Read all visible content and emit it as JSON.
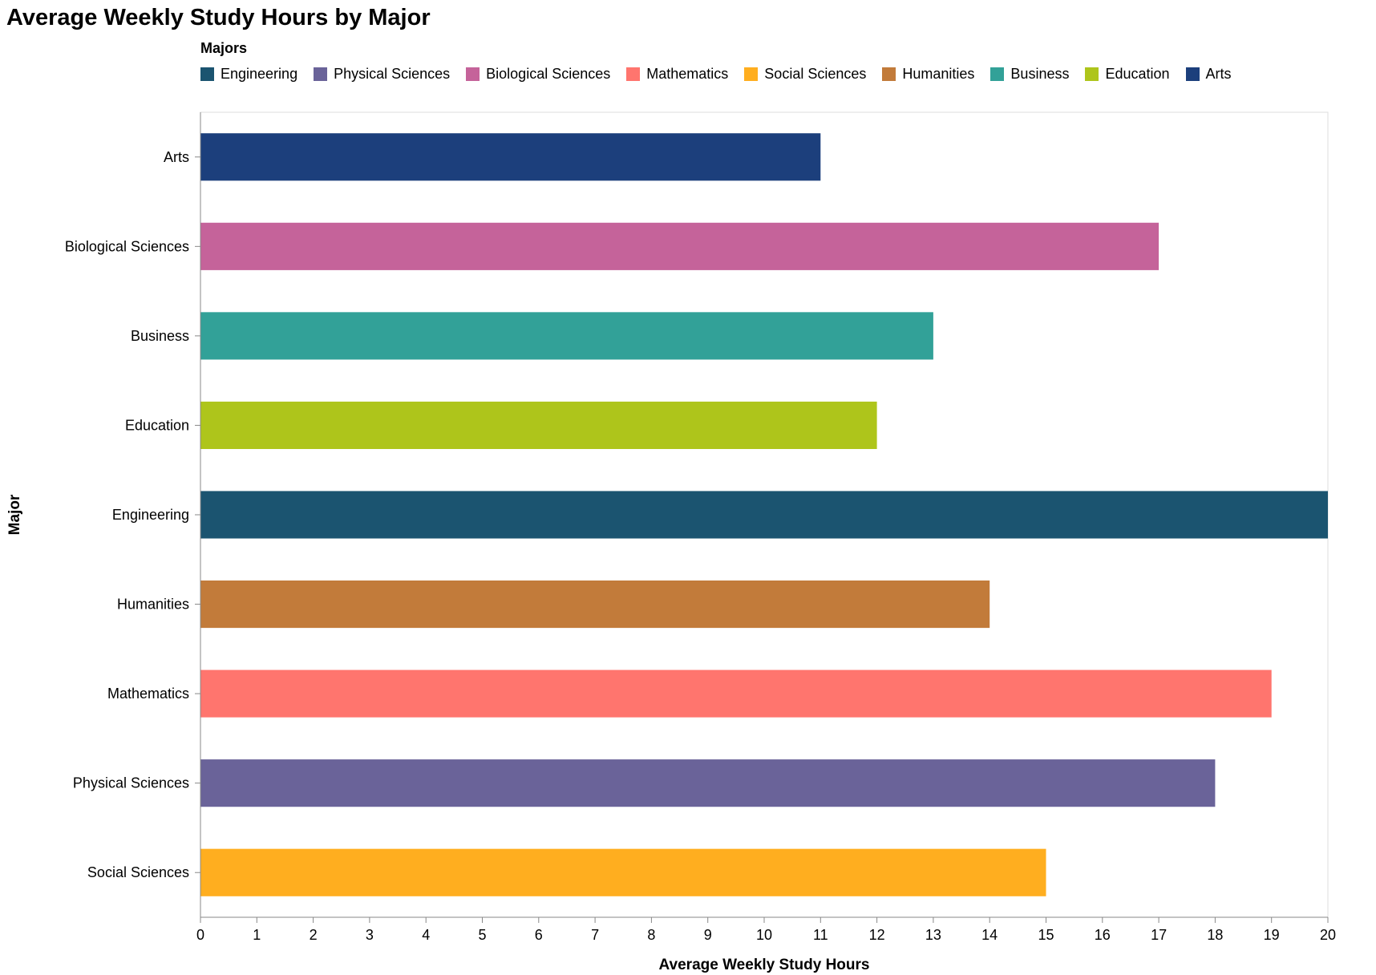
{
  "chart_data": {
    "type": "bar",
    "orientation": "horizontal",
    "title": "Average Weekly Study Hours by Major",
    "xlabel": "Average Weekly Study Hours",
    "ylabel": "Major",
    "xlim": [
      0,
      20
    ],
    "x_ticks": [
      "0",
      "1",
      "2",
      "3",
      "4",
      "5",
      "6",
      "7",
      "8",
      "9",
      "10",
      "11",
      "12",
      "13",
      "14",
      "15",
      "16",
      "17",
      "18",
      "19",
      "20"
    ],
    "grid": false,
    "legend": {
      "title": "Majors",
      "position": "top",
      "entries": [
        {
          "name": "Engineering",
          "color": "#1b5470"
        },
        {
          "name": "Physical Sciences",
          "color": "#6a6399"
        },
        {
          "name": "Biological Sciences",
          "color": "#c5639a"
        },
        {
          "name": "Mathematics",
          "color": "#ff756e"
        },
        {
          "name": "Social Sciences",
          "color": "#ffae1f"
        },
        {
          "name": "Humanities",
          "color": "#c27b3a"
        },
        {
          "name": "Business",
          "color": "#32a198"
        },
        {
          "name": "Education",
          "color": "#aec51b"
        },
        {
          "name": "Arts",
          "color": "#1c3f7c"
        }
      ]
    },
    "categories": [
      "Arts",
      "Biological Sciences",
      "Business",
      "Education",
      "Engineering",
      "Humanities",
      "Mathematics",
      "Physical Sciences",
      "Social Sciences"
    ],
    "values": [
      11,
      17,
      13,
      12,
      20,
      14,
      19,
      18,
      15
    ],
    "colors": [
      "#1c3f7c",
      "#c5639a",
      "#32a198",
      "#aec51b",
      "#1b5470",
      "#c27b3a",
      "#ff756e",
      "#6a6399",
      "#ffae1f"
    ]
  }
}
